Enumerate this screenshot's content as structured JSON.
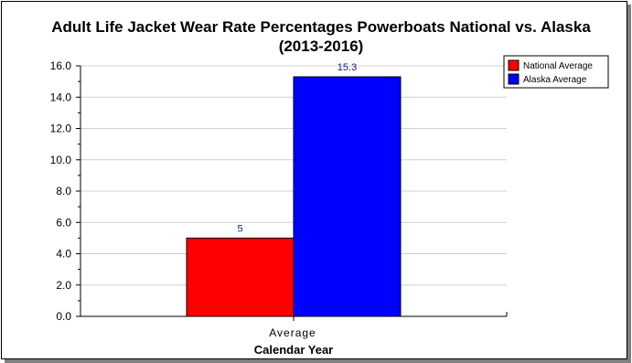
{
  "chart_data": {
    "type": "bar",
    "title_line1": "Adult Life Jacket Wear Rate Percentages Powerboats National vs. Alaska",
    "title_line2": "(2013-2016)",
    "xlabel": "Calendar Year",
    "ylabel": "",
    "categories": [
      "Average"
    ],
    "ylim": [
      0,
      16
    ],
    "ytick_step": 2,
    "ytick_labels": [
      "0.0",
      "2.0",
      "4.0",
      "6.0",
      "8.0",
      "10.0",
      "12.0",
      "14.0",
      "16.0"
    ],
    "grid": true,
    "legend_position": "top-right",
    "series": [
      {
        "name": "National Average",
        "values": [
          5
        ],
        "value_labels": [
          "5"
        ],
        "color": "#ff0000"
      },
      {
        "name": "Alaska Average",
        "values": [
          15.3
        ],
        "value_labels": [
          "15.3"
        ],
        "color": "#0000ff"
      }
    ]
  }
}
